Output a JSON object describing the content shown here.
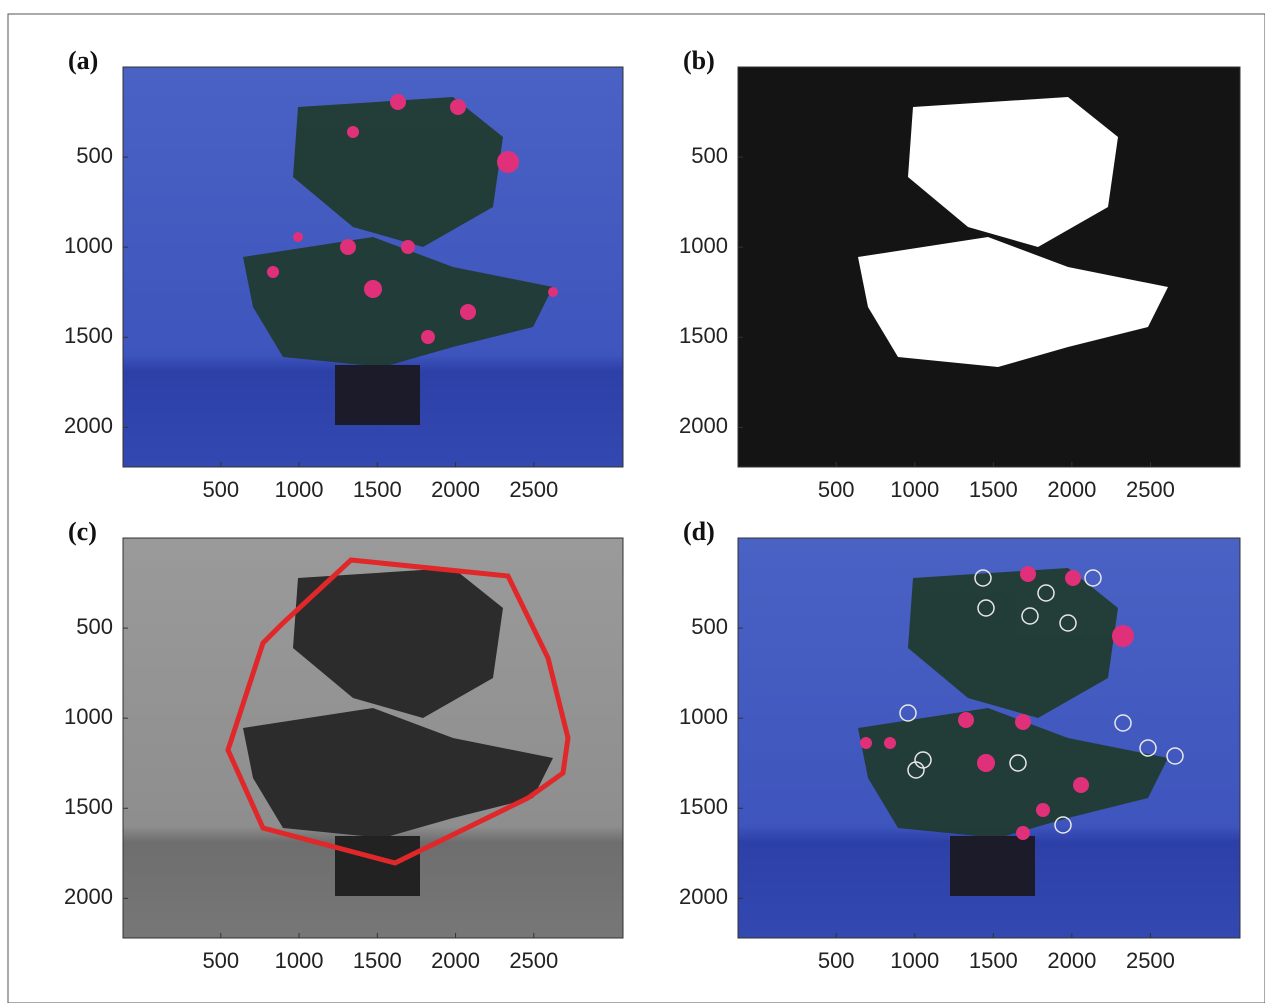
{
  "figure": {
    "panels": [
      {
        "label": "(a)",
        "xlim": [
          -125,
          3070
        ],
        "ylim": [
          0,
          2220
        ],
        "xticks": [
          500,
          1000,
          1500,
          2000,
          2500
        ],
        "yticks": [
          500,
          1000,
          1500,
          2000
        ]
      },
      {
        "label": "(b)",
        "xlim": [
          -125,
          3070
        ],
        "ylim": [
          0,
          2220
        ],
        "xticks": [
          500,
          1000,
          1500,
          2000,
          2500
        ],
        "yticks": [
          500,
          1000,
          1500,
          2000
        ]
      },
      {
        "label": "(c)",
        "xlim": [
          -125,
          3070
        ],
        "ylim": [
          0,
          2220
        ],
        "xticks": [
          500,
          1000,
          1500,
          2000,
          2500
        ],
        "yticks": [
          500,
          1000,
          1500,
          2000
        ]
      },
      {
        "label": "(d)",
        "xlim": [
          -125,
          3070
        ],
        "ylim": [
          0,
          2220
        ],
        "xticks": [
          500,
          1000,
          1500,
          2000,
          2500
        ],
        "yticks": [
          500,
          1000,
          1500,
          2000
        ]
      }
    ]
  }
}
